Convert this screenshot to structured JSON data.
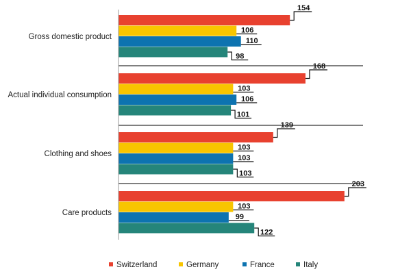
{
  "chart_data": {
    "type": "bar",
    "orientation": "horizontal",
    "categories": [
      "Gross domestic product",
      "Actual individual consumption",
      "Clothing and shoes",
      "Care products"
    ],
    "series": [
      {
        "name": "Switzerland",
        "color": "#e8412f",
        "values": [
          154,
          168,
          139,
          203
        ]
      },
      {
        "name": "Germany",
        "color": "#f8c500",
        "values": [
          106,
          103,
          103,
          103
        ]
      },
      {
        "name": "France",
        "color": "#0d73b0",
        "values": [
          110,
          106,
          103,
          99
        ]
      },
      {
        "name": "Italy",
        "color": "#25857a",
        "values": [
          98,
          101,
          103,
          122
        ]
      }
    ],
    "xlim": [
      0,
      203
    ],
    "grid": false,
    "legend_position": "bottom"
  }
}
